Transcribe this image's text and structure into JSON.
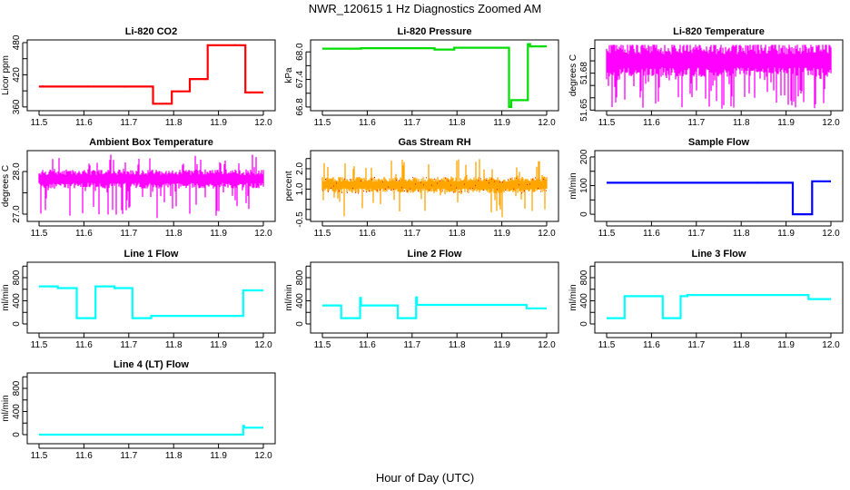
{
  "title": "NWR_120615  1 Hz Diagnostics Zoomed AM",
  "xlabel": "Hour of Day (UTC)",
  "chart_data": [
    {
      "type": "line",
      "title": "Li-820 CO2",
      "ylabel": "Licor ppm",
      "color": "#ff0000",
      "xlim": [
        11.5,
        12.0
      ],
      "ylim": [
        353,
        485
      ],
      "xticks": [
        11.5,
        11.6,
        11.7,
        11.8,
        11.9,
        12.0
      ],
      "yticks": [
        360,
        390,
        420,
        450,
        480
      ],
      "ytick_labels": [
        "360",
        "",
        "420",
        "",
        "480"
      ],
      "steps": [
        [
          11.5,
          398
        ],
        [
          11.754,
          366
        ],
        [
          11.796,
          389
        ],
        [
          11.836,
          412
        ],
        [
          11.876,
          475
        ],
        [
          11.96,
          387
        ],
        [
          12.0,
          387
        ]
      ],
      "jitter": 2
    },
    {
      "type": "line",
      "title": "Li-820 Pressure",
      "ylabel": "kPa",
      "color": "#00dd00",
      "xlim": [
        11.5,
        12.0
      ],
      "ylim": [
        66.72,
        68.26
      ],
      "xticks": [
        11.5,
        11.6,
        11.7,
        11.8,
        11.9,
        12.0
      ],
      "yticks": [
        66.8,
        67.1,
        67.4,
        67.7,
        68.0
      ],
      "ytick_labels": [
        "66.8",
        "",
        "67.4",
        "",
        "68.0"
      ],
      "steps": [
        [
          11.5,
          68.07
        ],
        [
          11.586,
          68.08
        ],
        [
          11.75,
          68.05
        ],
        [
          11.794,
          68.09
        ],
        [
          11.916,
          66.8
        ],
        [
          11.921,
          66.95
        ],
        [
          11.958,
          68.17
        ],
        [
          11.963,
          68.12
        ],
        [
          12.0,
          68.12
        ]
      ],
      "jitter": 0.01
    },
    {
      "type": "line",
      "title": "Li-820 Temperature",
      "ylabel": "degrees C",
      "color": "#ff00ff",
      "xlim": [
        11.5,
        12.0
      ],
      "ylim": [
        51.6495,
        51.707
      ],
      "xticks": [
        11.5,
        11.6,
        11.7,
        11.8,
        11.9,
        12.0
      ],
      "yticks": [
        51.65,
        51.66,
        51.67,
        51.68,
        51.69,
        51.7
      ],
      "ytick_labels": [
        "51.65",
        "",
        "",
        "51.68",
        "",
        ""
      ],
      "band": [
        51.677,
        51.703
      ],
      "spike_range": [
        51.65,
        51.703
      ],
      "spike_rate": 0.45
    },
    {
      "type": "line",
      "title": "Ambient Box Temperature",
      "ylabel": "degrees C",
      "color": "#ff00ff",
      "xlim": [
        11.5,
        12.0
      ],
      "ylim": [
        26.83,
        28.49
      ],
      "xticks": [
        11.5,
        11.6,
        11.7,
        11.8,
        11.9,
        12.0
      ],
      "yticks": [
        27.0,
        27.5,
        28.0
      ],
      "ytick_labels": [
        "27.0",
        "",
        "28.0"
      ],
      "band": [
        27.6,
        28.05
      ],
      "spike_range": [
        26.9,
        28.4
      ],
      "spike_rate": 0.25
    },
    {
      "type": "line",
      "title": "Gas Stream RH",
      "ylabel": "percent",
      "color": "#ffa500",
      "xlim": [
        11.5,
        12.0
      ],
      "ylim": [
        -0.59,
        2.89
      ],
      "xticks": [
        11.5,
        11.6,
        11.7,
        11.8,
        11.9,
        12.0
      ],
      "yticks": [
        -0.5,
        0.0,
        0.5,
        1.0,
        1.5,
        2.0,
        2.5
      ],
      "ytick_labels": [
        "-0.5",
        "",
        "",
        "1.0",
        "",
        "2.0",
        ""
      ],
      "band": [
        0.8,
        1.6
      ],
      "spike_range": [
        -0.5,
        2.5
      ],
      "spike_rate": 0.2
    },
    {
      "type": "line",
      "title": "Sample Flow",
      "ylabel": "ml/min",
      "color": "#0000ff",
      "xlim": [
        11.5,
        12.0
      ],
      "ylim": [
        -25,
        222
      ],
      "xticks": [
        11.5,
        11.6,
        11.7,
        11.8,
        11.9,
        12.0
      ],
      "yticks": [
        0,
        50,
        100,
        150,
        200
      ],
      "ytick_labels": [
        "0",
        "",
        "100",
        "",
        "200"
      ],
      "steps": [
        [
          11.5,
          110
        ],
        [
          11.915,
          0
        ],
        [
          11.958,
          115
        ],
        [
          12.0,
          112
        ]
      ],
      "jitter": 3
    },
    {
      "type": "line",
      "title": "Line 1 Flow",
      "ylabel": "ml/min",
      "color": "#00ffff",
      "xlim": [
        11.5,
        12.0
      ],
      "ylim": [
        -157,
        1067
      ],
      "xticks": [
        11.5,
        11.6,
        11.7,
        11.8,
        11.9,
        12.0
      ],
      "yticks": [
        0,
        200,
        400,
        600,
        800,
        1000
      ],
      "ytick_labels": [
        "0",
        "",
        "400",
        "",
        "800",
        ""
      ],
      "steps": [
        [
          11.5,
          650
        ],
        [
          11.542,
          620
        ],
        [
          11.584,
          100
        ],
        [
          11.626,
          650
        ],
        [
          11.668,
          620
        ],
        [
          11.708,
          100
        ],
        [
          11.75,
          140
        ],
        [
          11.955,
          580
        ],
        [
          12.0,
          580
        ]
      ],
      "jitter": 12
    },
    {
      "type": "line",
      "title": "Line 2 Flow",
      "ylabel": "ml/min",
      "color": "#00ffff",
      "xlim": [
        11.5,
        12.0
      ],
      "ylim": [
        -157,
        1067
      ],
      "xticks": [
        11.5,
        11.6,
        11.7,
        11.8,
        11.9,
        12.0
      ],
      "yticks": [
        0,
        200,
        400,
        600,
        800,
        1000
      ],
      "ytick_labels": [
        "0",
        "",
        "400",
        "",
        "800",
        ""
      ],
      "steps": [
        [
          11.5,
          320
        ],
        [
          11.542,
          100
        ],
        [
          11.584,
          450
        ],
        [
          11.586,
          320
        ],
        [
          11.668,
          100
        ],
        [
          11.709,
          460
        ],
        [
          11.711,
          330
        ],
        [
          11.955,
          270
        ],
        [
          12.0,
          270
        ]
      ],
      "jitter": 14
    },
    {
      "type": "line",
      "title": "Line 3 Flow",
      "ylabel": "ml/min",
      "color": "#00ffff",
      "xlim": [
        11.5,
        12.0
      ],
      "ylim": [
        -157,
        1067
      ],
      "xticks": [
        11.5,
        11.6,
        11.7,
        11.8,
        11.9,
        12.0
      ],
      "yticks": [
        0,
        200,
        400,
        600,
        800,
        1000
      ],
      "ytick_labels": [
        "0",
        "",
        "400",
        "",
        "800",
        ""
      ],
      "steps": [
        [
          11.5,
          100
        ],
        [
          11.54,
          480
        ],
        [
          11.625,
          100
        ],
        [
          11.665,
          480
        ],
        [
          11.68,
          500
        ],
        [
          11.95,
          430
        ],
        [
          12.0,
          430
        ]
      ],
      "jitter": 12
    },
    {
      "type": "line",
      "title": "Line 4 (LT) Flow",
      "ylabel": "ml/min",
      "color": "#00ffff",
      "xlim": [
        11.5,
        12.0
      ],
      "ylim": [
        -157,
        1067
      ],
      "xticks": [
        11.5,
        11.6,
        11.7,
        11.8,
        11.9,
        12.0
      ],
      "yticks": [
        0,
        200,
        400,
        600,
        800,
        1000
      ],
      "ytick_labels": [
        "0",
        "",
        "400",
        "",
        "800",
        ""
      ],
      "steps": [
        [
          11.5,
          0
        ],
        [
          11.955,
          150
        ],
        [
          11.957,
          120
        ],
        [
          12.0,
          120
        ]
      ],
      "jitter": 2
    }
  ]
}
